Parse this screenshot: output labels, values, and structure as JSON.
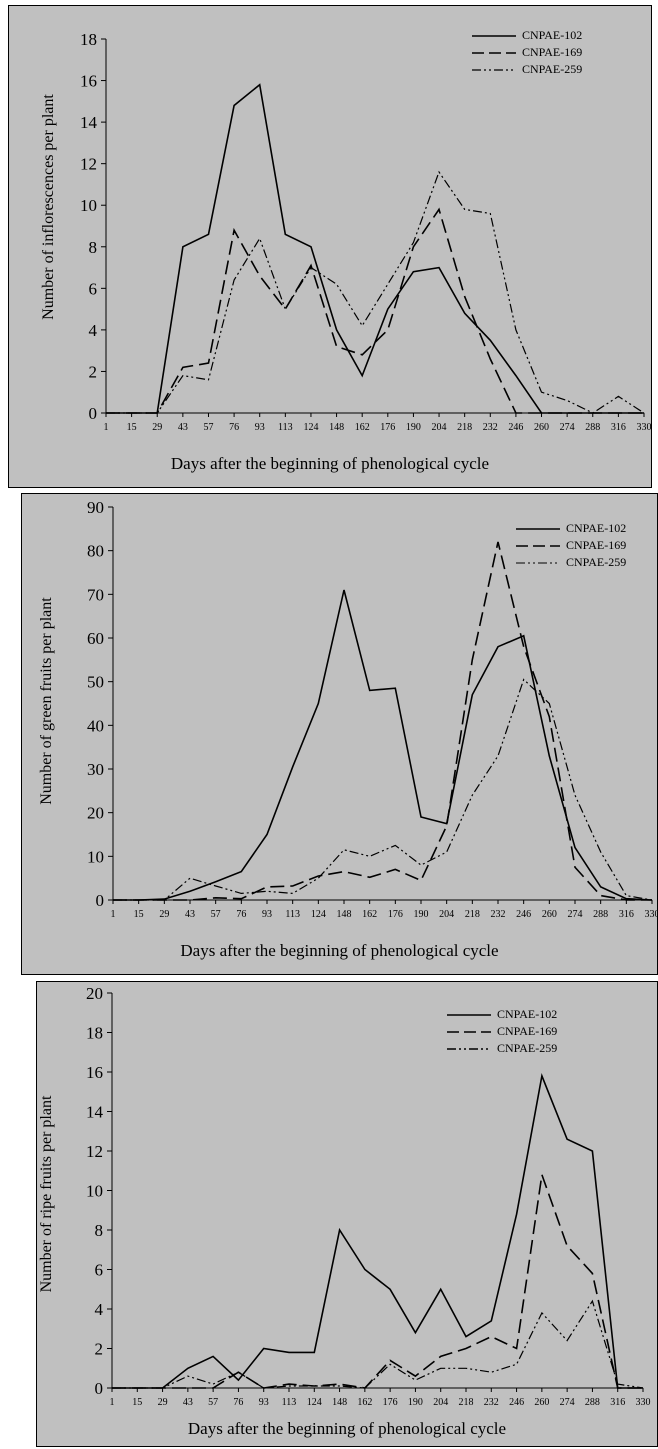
{
  "chart_data": [
    {
      "type": "line",
      "x": [
        1,
        15,
        29,
        43,
        57,
        76,
        93,
        113,
        124,
        148,
        162,
        176,
        190,
        204,
        218,
        232,
        246,
        260,
        274,
        288,
        316,
        330
      ],
      "x_tick_labels": [
        "1",
        "15",
        "29",
        "43",
        "57",
        "76",
        "93",
        "113",
        "124",
        "148",
        "162",
        "176",
        "190",
        "204",
        "218",
        "232",
        "246",
        "260",
        "274",
        "288",
        "316",
        "330"
      ],
      "ylim": [
        0,
        18
      ],
      "y_ticks": [
        0,
        2,
        4,
        6,
        8,
        10,
        12,
        14,
        16,
        18
      ],
      "xlabel": "Days after the beginning of phenological cycle",
      "ylabel": "Number of inflorescences per plant",
      "legend_position": "top-right",
      "series": [
        {
          "name": "CNPAE-102",
          "style": "solid",
          "values": [
            0,
            0,
            0,
            8.0,
            8.6,
            14.8,
            15.8,
            8.6,
            8.0,
            4.0,
            1.8,
            5.0,
            6.8,
            7.0,
            4.8,
            3.5,
            1.8,
            0,
            0,
            0,
            0,
            0
          ]
        },
        {
          "name": "CNPAE-169",
          "style": "dash",
          "values": [
            0,
            0,
            0,
            2.2,
            2.4,
            8.8,
            6.6,
            5.0,
            7.1,
            3.2,
            2.8,
            4.0,
            8.0,
            9.8,
            5.6,
            2.6,
            0,
            0,
            0,
            0,
            0,
            0
          ]
        },
        {
          "name": "CNPAE-259",
          "style": "dashdotdot",
          "values": [
            0,
            0,
            0,
            1.8,
            1.6,
            6.4,
            8.4,
            5.0,
            7.0,
            6.2,
            4.2,
            6.2,
            8.2,
            11.6,
            9.8,
            9.6,
            4.0,
            1.0,
            0.6,
            0,
            0.8,
            0
          ]
        }
      ]
    },
    {
      "type": "line",
      "x": [
        1,
        15,
        29,
        43,
        57,
        76,
        93,
        113,
        124,
        148,
        162,
        176,
        190,
        204,
        218,
        232,
        246,
        260,
        274,
        288,
        316,
        330
      ],
      "x_tick_labels": [
        "1",
        "15",
        "29",
        "43",
        "57",
        "76",
        "93",
        "113",
        "124",
        "148",
        "162",
        "176",
        "190",
        "204",
        "218",
        "232",
        "246",
        "260",
        "274",
        "288",
        "316",
        "330"
      ],
      "ylim": [
        0,
        90
      ],
      "y_ticks": [
        0,
        10,
        20,
        30,
        40,
        50,
        60,
        70,
        80,
        90
      ],
      "xlabel": "Days after the beginning of phenological cycle",
      "ylabel": "Number of green fruits per plant",
      "legend_position": "top-right",
      "series": [
        {
          "name": "CNPAE-102",
          "style": "solid",
          "values": [
            0,
            0,
            0.2,
            2.0,
            4.2,
            6.5,
            15.0,
            30.5,
            45.0,
            71.0,
            48.0,
            48.5,
            19.0,
            17.5,
            47.0,
            58.0,
            60.5,
            33.0,
            12.0,
            3.0,
            0.3,
            0
          ]
        },
        {
          "name": "CNPAE-169",
          "style": "dash",
          "values": [
            0,
            0,
            0,
            0,
            0.5,
            0.3,
            3.0,
            3.2,
            5.5,
            6.5,
            5.2,
            7.0,
            4.5,
            17.0,
            55.0,
            82.0,
            58.0,
            42.0,
            7.5,
            1.0,
            0,
            0
          ]
        },
        {
          "name": "CNPAE-259",
          "style": "dashdotdot",
          "values": [
            0,
            0,
            0,
            5.0,
            3.2,
            1.5,
            2.0,
            1.5,
            5.0,
            11.5,
            10.0,
            12.5,
            8.0,
            11.0,
            24.0,
            33.0,
            50.5,
            45.0,
            24.0,
            11.0,
            1.0,
            0
          ]
        }
      ]
    },
    {
      "type": "line",
      "x": [
        1,
        15,
        29,
        43,
        57,
        76,
        93,
        113,
        124,
        148,
        162,
        176,
        190,
        204,
        218,
        232,
        246,
        260,
        274,
        288,
        316,
        330
      ],
      "x_tick_labels": [
        "1",
        "15",
        "29",
        "43",
        "57",
        "76",
        "93",
        "113",
        "124",
        "148",
        "162",
        "176",
        "190",
        "204",
        "218",
        "232",
        "246",
        "260",
        "274",
        "288",
        "316",
        "330"
      ],
      "ylim": [
        0,
        20
      ],
      "y_ticks": [
        0,
        2,
        4,
        6,
        8,
        10,
        12,
        14,
        16,
        18,
        20
      ],
      "xlabel": "Days after the beginning of phenological cycle",
      "ylabel": "Number of ripe fruits per plant",
      "legend_position": "top-right",
      "series": [
        {
          "name": "CNPAE-102",
          "style": "solid",
          "values": [
            0,
            0,
            0,
            1.0,
            1.6,
            0.4,
            2.0,
            1.8,
            1.8,
            8.0,
            6.0,
            5.0,
            2.8,
            5.0,
            2.6,
            3.4,
            8.8,
            15.8,
            12.6,
            12.0,
            0,
            0
          ]
        },
        {
          "name": "CNPAE-169",
          "style": "dash",
          "values": [
            0,
            0,
            0,
            0,
            0,
            0.8,
            0,
            0.2,
            0.1,
            0.2,
            0,
            1.4,
            0.6,
            1.6,
            2.0,
            2.6,
            2.0,
            10.8,
            7.2,
            5.8,
            0,
            0
          ]
        },
        {
          "name": "CNPAE-259",
          "style": "dashdotdot",
          "values": [
            0,
            0,
            0,
            0.6,
            0.2,
            0.8,
            0,
            0.1,
            0.1,
            0.1,
            0,
            1.2,
            0.4,
            1.0,
            1.0,
            0.8,
            1.2,
            3.8,
            2.4,
            4.4,
            0.2,
            0
          ]
        }
      ]
    }
  ]
}
